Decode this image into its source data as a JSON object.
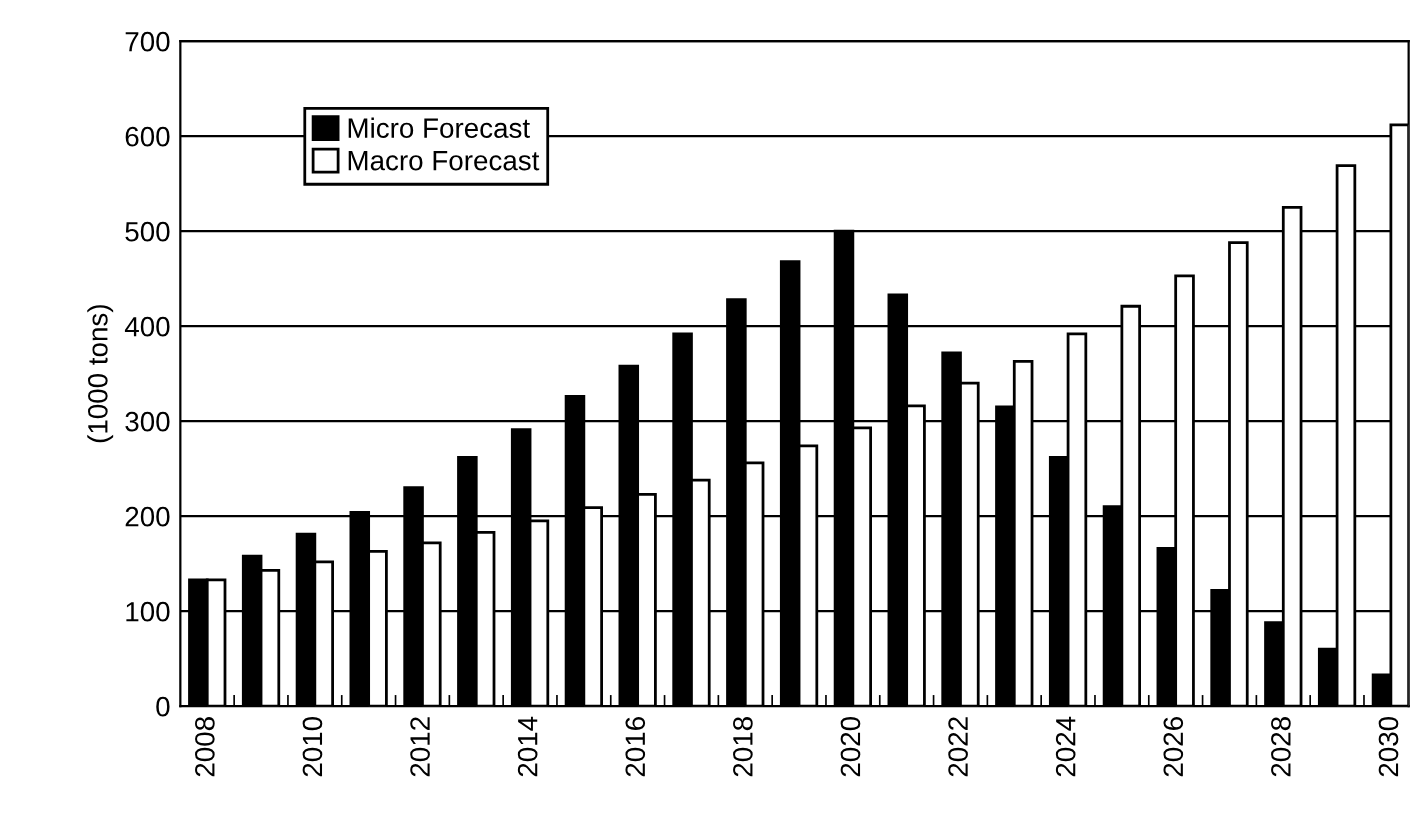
{
  "chart_data": {
    "type": "bar",
    "ylabel": "(1000 tons)",
    "categories": [
      "2008",
      null,
      "2010",
      null,
      "2012",
      null,
      "2014",
      null,
      "2016",
      null,
      "2018",
      null,
      "2020",
      null,
      "2022",
      null,
      "2024",
      null,
      "2026",
      null,
      "2028",
      null,
      "2030"
    ],
    "series": [
      {
        "name": "Micro Forecast",
        "color": "#000000",
        "values": [
          133,
          158,
          181,
          204,
          230,
          262,
          291,
          326,
          358,
          392,
          428,
          468,
          500,
          433,
          372,
          315,
          262,
          210,
          166,
          122,
          88,
          60,
          33
        ]
      },
      {
        "name": "Macro Forecast",
        "color": "#ffffff",
        "values": [
          133,
          143,
          152,
          163,
          172,
          183,
          195,
          209,
          223,
          238,
          256,
          274,
          293,
          316,
          340,
          363,
          392,
          421,
          453,
          488,
          525,
          569,
          612
        ]
      }
    ],
    "ylim": [
      0,
      700
    ],
    "yticks": [
      0,
      100,
      200,
      300,
      400,
      500,
      600,
      700
    ],
    "grid": "y",
    "legend": "top left"
  }
}
